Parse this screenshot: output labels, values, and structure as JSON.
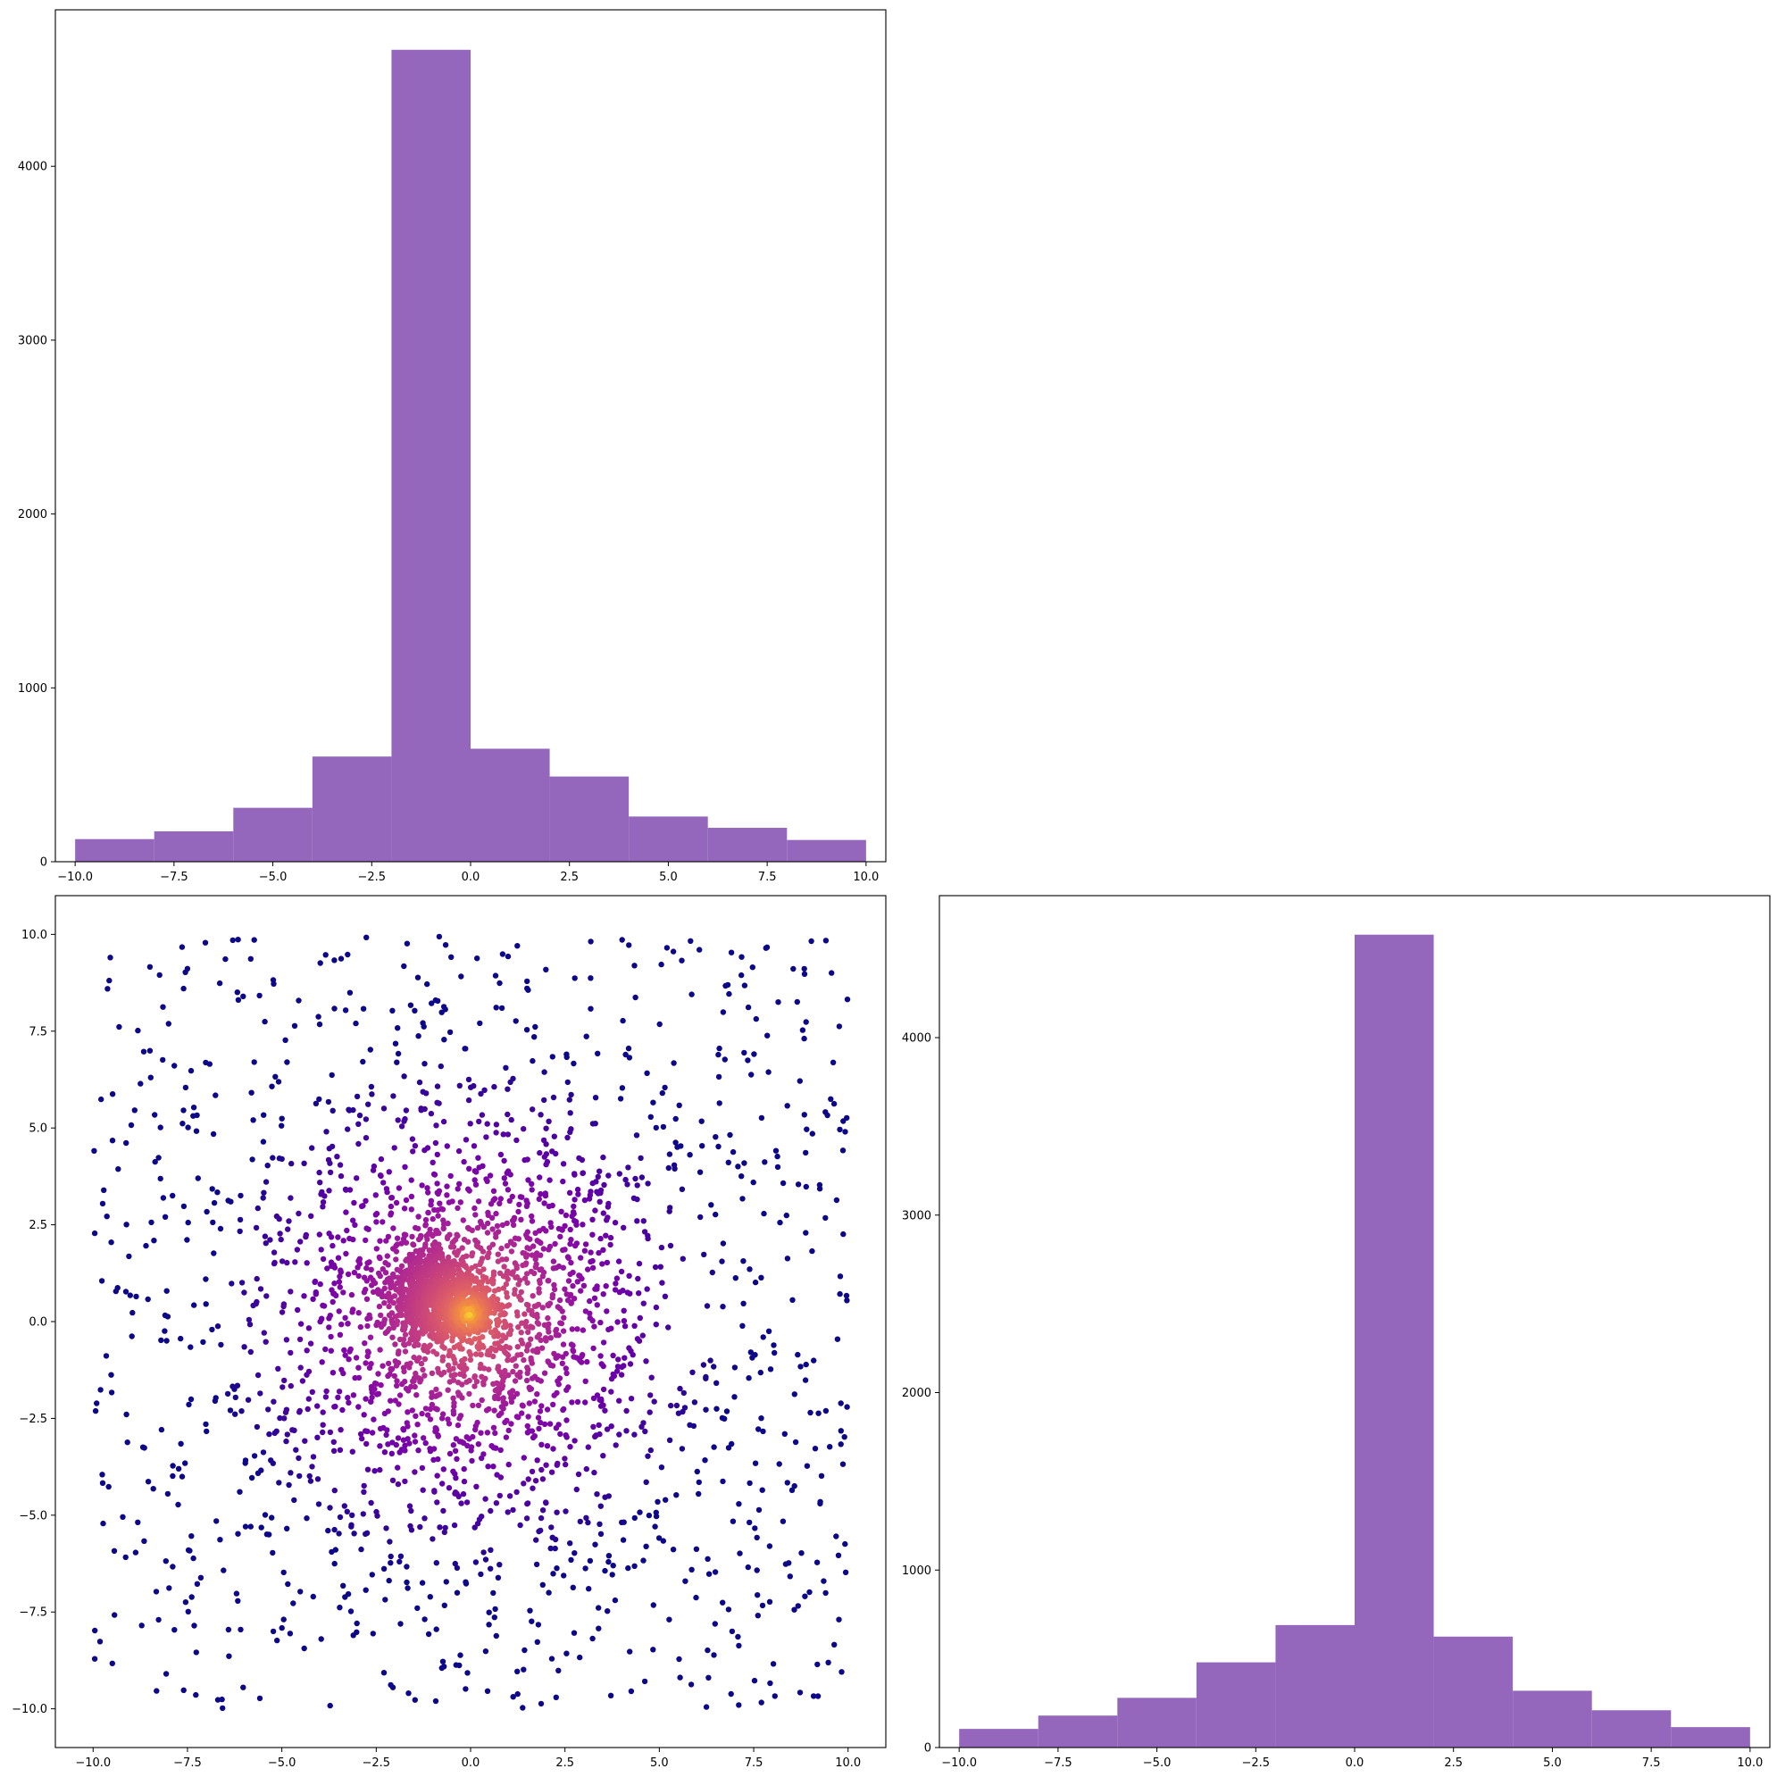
{
  "colors": {
    "histogram_fill": "#9467bd",
    "scatter_colormap": "plasma",
    "background": "#ffffff",
    "axes": "#000000"
  },
  "chart_data": [
    {
      "id": "top-left",
      "type": "bar",
      "title": "",
      "xlabel": "",
      "ylabel": "",
      "bin_edges": [
        -10.0,
        -8.0,
        -6.0,
        -4.0,
        -2.0,
        0.0,
        2.0,
        4.0,
        6.0,
        8.0,
        10.0
      ],
      "values": [
        130,
        175,
        310,
        605,
        4670,
        650,
        490,
        260,
        195,
        125
      ],
      "xlim": [
        -10.5,
        10.5
      ],
      "ylim": [
        0,
        4900
      ],
      "xticks": [
        -10.0,
        -7.5,
        -5.0,
        -2.5,
        0.0,
        2.5,
        5.0,
        7.5,
        10.0
      ],
      "xtick_labels": [
        "−10.0",
        "−7.5",
        "−5.0",
        "−2.5",
        "0.0",
        "2.5",
        "5.0",
        "7.5",
        "10.0"
      ],
      "yticks": [
        0,
        1000,
        2000,
        3000,
        4000
      ],
      "ytick_labels": [
        "0",
        "1000",
        "2000",
        "3000",
        "4000"
      ],
      "grid": false,
      "color": "#9467bd"
    },
    {
      "id": "bottom-left",
      "type": "scatter",
      "title": "",
      "xlabel": "",
      "ylabel": "",
      "description_points": "about 5000 points; dense cluster centered near (-0.8, 0.6), uniform background on [-10, 10] x [-10, 10]; color by local density (plasma colormap)",
      "xlim": [
        -11.0,
        11.0
      ],
      "ylim": [
        -11.0,
        11.0
      ],
      "xticks": [
        -10.0,
        -7.5,
        -5.0,
        -2.5,
        0.0,
        2.5,
        5.0,
        7.5,
        10.0
      ],
      "xtick_labels": [
        "−10.0",
        "−7.5",
        "−5.0",
        "−2.5",
        "0.0",
        "2.5",
        "5.0",
        "7.5",
        "10.0"
      ],
      "yticks": [
        -10.0,
        -7.5,
        -5.0,
        -2.5,
        0.0,
        2.5,
        5.0,
        7.5,
        10.0
      ],
      "ytick_labels": [
        "−10.0",
        "−7.5",
        "−5.0",
        "−2.5",
        "0.0",
        "2.5",
        "5.0",
        "7.5",
        "10.0"
      ],
      "grid": false
    },
    {
      "id": "bottom-right",
      "type": "bar",
      "title": "",
      "xlabel": "",
      "ylabel": "",
      "bin_edges": [
        -10.0,
        -8.0,
        -6.0,
        -4.0,
        -2.0,
        0.0,
        2.0,
        4.0,
        6.0,
        8.0,
        10.0
      ],
      "values": [
        105,
        180,
        280,
        480,
        690,
        4580,
        625,
        320,
        210,
        115
      ],
      "xlim": [
        -10.5,
        10.5
      ],
      "ylim": [
        0,
        4800
      ],
      "xticks": [
        -10.0,
        -7.5,
        -5.0,
        -2.5,
        0.0,
        2.5,
        5.0,
        7.5,
        10.0
      ],
      "xtick_labels": [
        "−10.0",
        "−7.5",
        "−5.0",
        "−2.5",
        "0.0",
        "2.5",
        "5.0",
        "7.5",
        "10.0"
      ],
      "yticks": [
        0,
        1000,
        2000,
        3000,
        4000
      ],
      "ytick_labels": [
        "0",
        "1000",
        "2000",
        "3000",
        "4000"
      ],
      "grid": false,
      "color": "#9467bd"
    }
  ]
}
